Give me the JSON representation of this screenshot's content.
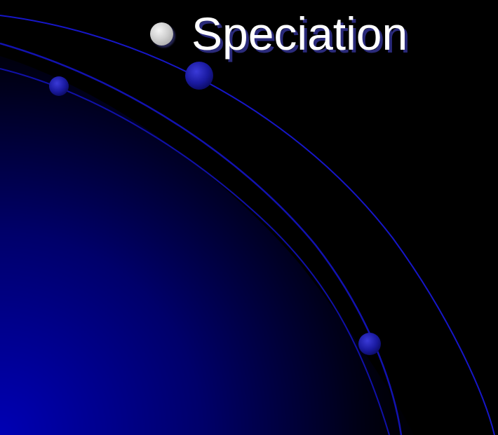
{
  "slide": {
    "title": "Speciation",
    "bullet_icon": "bullet-dot-icon",
    "colors": {
      "background": "#000000",
      "accent_blue": "#0000a8",
      "title_text": "#ffffff",
      "title_shadow": "#2a2a7a"
    }
  }
}
